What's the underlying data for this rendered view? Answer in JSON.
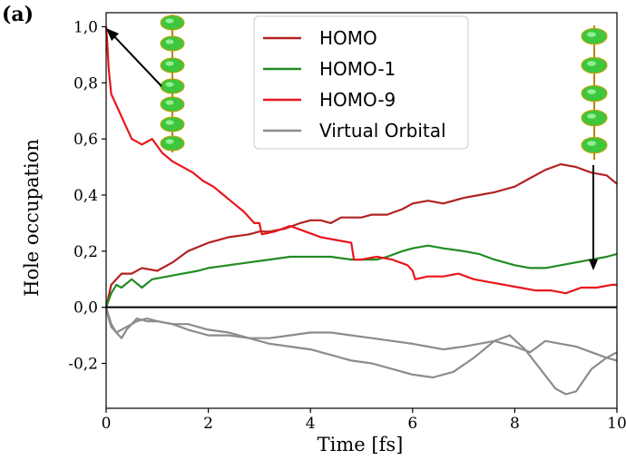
{
  "chart_data": {
    "type": "line",
    "panel_label": "(a)",
    "xlabel": "Time [fs]",
    "ylabel": "Hole occupation",
    "xlim": [
      0,
      10
    ],
    "ylim": [
      -0.36,
      1.05
    ],
    "xticks": [
      "0",
      "2",
      "4",
      "6",
      "8",
      "10"
    ],
    "yticks": [
      {
        "value": 1.0,
        "label": "1,0"
      },
      {
        "value": 0.8,
        "label": "0,8"
      },
      {
        "value": 0.6,
        "label": "0,6"
      },
      {
        "value": 0.4,
        "label": "0,4"
      },
      {
        "value": 0.2,
        "label": "0,2"
      },
      {
        "value": 0.0,
        "label": "0,0"
      },
      {
        "value": -0.2,
        "label": "-0,2"
      }
    ],
    "zero_line": true,
    "legend_position": "top-center",
    "series": [
      {
        "name": "HOMO",
        "color": "#b22222",
        "x": [
          0,
          0.1,
          0.2,
          0.3,
          0.5,
          0.7,
          1.0,
          1.3,
          1.6,
          2.0,
          2.4,
          2.8,
          3.0,
          3.2,
          3.5,
          3.8,
          4.0,
          4.2,
          4.4,
          4.6,
          4.8,
          5.0,
          5.2,
          5.5,
          5.8,
          6.0,
          6.3,
          6.6,
          7.0,
          7.3,
          7.6,
          8.0,
          8.3,
          8.6,
          8.9,
          9.2,
          9.5,
          9.8,
          10.0
        ],
        "values": [
          0.0,
          0.08,
          0.1,
          0.12,
          0.12,
          0.14,
          0.13,
          0.16,
          0.2,
          0.23,
          0.25,
          0.26,
          0.27,
          0.27,
          0.28,
          0.3,
          0.31,
          0.31,
          0.3,
          0.32,
          0.32,
          0.32,
          0.33,
          0.33,
          0.35,
          0.37,
          0.38,
          0.37,
          0.39,
          0.4,
          0.41,
          0.43,
          0.46,
          0.49,
          0.51,
          0.5,
          0.48,
          0.47,
          0.44
        ]
      },
      {
        "name": "HOMO-1",
        "color": "#228b22",
        "x": [
          0,
          0.1,
          0.2,
          0.3,
          0.5,
          0.7,
          0.9,
          1.2,
          1.5,
          1.8,
          2.0,
          2.4,
          2.8,
          3.2,
          3.6,
          4.0,
          4.4,
          4.8,
          5.0,
          5.3,
          5.5,
          5.8,
          6.0,
          6.3,
          6.6,
          7.0,
          7.3,
          7.6,
          8.0,
          8.3,
          8.6,
          8.9,
          9.2,
          9.5,
          9.8,
          10.0
        ],
        "values": [
          0.0,
          0.05,
          0.08,
          0.07,
          0.1,
          0.07,
          0.1,
          0.11,
          0.12,
          0.13,
          0.14,
          0.15,
          0.16,
          0.17,
          0.18,
          0.18,
          0.18,
          0.17,
          0.17,
          0.17,
          0.18,
          0.2,
          0.21,
          0.22,
          0.21,
          0.2,
          0.19,
          0.17,
          0.15,
          0.14,
          0.14,
          0.15,
          0.16,
          0.17,
          0.18,
          0.19
        ]
      },
      {
        "name": "HOMO-9",
        "color": "#e8161b",
        "x": [
          0,
          0.02,
          0.05,
          0.1,
          0.2,
          0.35,
          0.5,
          0.7,
          0.9,
          1.1,
          1.3,
          1.5,
          1.7,
          1.9,
          2.1,
          2.3,
          2.5,
          2.7,
          2.9,
          3.0,
          3.05,
          3.3,
          3.6,
          3.9,
          4.2,
          4.5,
          4.8,
          4.85,
          5.0,
          5.3,
          5.6,
          5.9,
          6.0,
          6.05,
          6.3,
          6.6,
          6.9,
          7.2,
          7.5,
          7.8,
          8.1,
          8.4,
          8.7,
          9.0,
          9.3,
          9.6,
          9.9,
          10.0
        ],
        "values": [
          1.0,
          0.95,
          0.85,
          0.76,
          0.72,
          0.66,
          0.6,
          0.58,
          0.6,
          0.55,
          0.52,
          0.5,
          0.48,
          0.45,
          0.43,
          0.4,
          0.37,
          0.34,
          0.3,
          0.3,
          0.26,
          0.27,
          0.29,
          0.27,
          0.25,
          0.24,
          0.23,
          0.17,
          0.17,
          0.18,
          0.17,
          0.15,
          0.13,
          0.1,
          0.11,
          0.11,
          0.12,
          0.1,
          0.09,
          0.08,
          0.07,
          0.06,
          0.06,
          0.05,
          0.07,
          0.07,
          0.08,
          0.08
        ]
      },
      {
        "name": "Virtual Orbital",
        "color": "#8c8c8c",
        "x": [
          0,
          0.05,
          0.1,
          0.2,
          0.3,
          0.4,
          0.5,
          0.6,
          0.8,
          1.0,
          1.3,
          1.6,
          2.0,
          2.4,
          2.8,
          3.2,
          3.6,
          4.0,
          4.4,
          4.8,
          5.2,
          5.6,
          6.0,
          6.3,
          6.6,
          7.0,
          7.3,
          7.6,
          8.0,
          8.3,
          8.6,
          8.9,
          9.2,
          9.5,
          9.8,
          10.0
        ],
        "values": [
          0.0,
          -0.04,
          -0.07,
          -0.09,
          -0.11,
          -0.08,
          -0.06,
          -0.04,
          -0.05,
          -0.05,
          -0.06,
          -0.08,
          -0.1,
          -0.1,
          -0.11,
          -0.11,
          -0.1,
          -0.09,
          -0.09,
          -0.1,
          -0.11,
          -0.12,
          -0.13,
          -0.14,
          -0.15,
          -0.14,
          -0.13,
          -0.12,
          -0.14,
          -0.16,
          -0.12,
          -0.13,
          -0.14,
          -0.16,
          -0.18,
          -0.19
        ]
      },
      {
        "name": "Virtual Orbital (2)",
        "color": "#8c8c8c",
        "x": [
          0,
          0.1,
          0.2,
          0.4,
          0.6,
          0.8,
          1.0,
          1.3,
          1.6,
          2.0,
          2.4,
          2.8,
          3.2,
          3.6,
          4.0,
          4.4,
          4.8,
          5.2,
          5.6,
          6.0,
          6.4,
          6.8,
          7.2,
          7.6,
          7.9,
          8.2,
          8.5,
          8.8,
          9.0,
          9.2,
          9.5,
          9.8,
          10.0
        ],
        "values": [
          0.0,
          -0.06,
          -0.09,
          -0.07,
          -0.05,
          -0.04,
          -0.05,
          -0.06,
          -0.06,
          -0.08,
          -0.09,
          -0.11,
          -0.13,
          -0.14,
          -0.15,
          -0.17,
          -0.19,
          -0.2,
          -0.22,
          -0.24,
          -0.25,
          -0.23,
          -0.18,
          -0.12,
          -0.1,
          -0.15,
          -0.22,
          -0.29,
          -0.31,
          -0.3,
          -0.22,
          -0.18,
          -0.16
        ]
      }
    ],
    "legend": [
      "HOMO",
      "HOMO-1",
      "HOMO-9",
      "Virtual Orbital"
    ]
  }
}
